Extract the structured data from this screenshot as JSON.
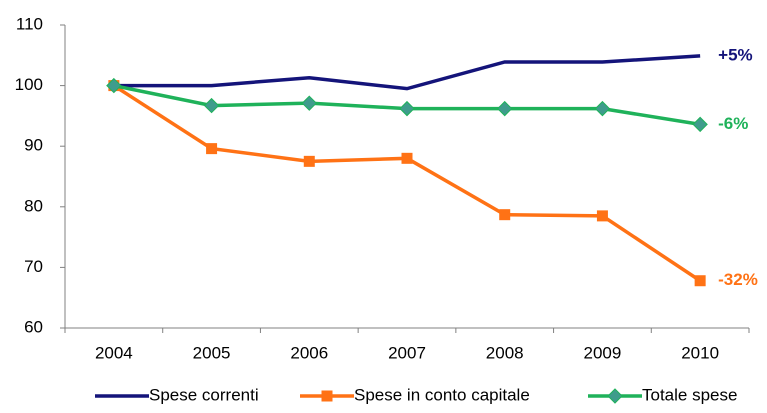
{
  "chart_data": {
    "type": "line",
    "categories": [
      "2004",
      "2005",
      "2006",
      "2007",
      "2008",
      "2009",
      "2010"
    ],
    "series": [
      {
        "name": "Spese correnti",
        "color": "#14147a",
        "marker": "none",
        "end_label": "+5%",
        "values": [
          100,
          100,
          101.3,
          99.5,
          103.9,
          103.9,
          104.9
        ]
      },
      {
        "name": "Spese in conto capitale",
        "color": "#ff7215",
        "marker": "square",
        "end_label": "-32%",
        "values": [
          100,
          89.6,
          87.5,
          88,
          78.7,
          78.5,
          67.8
        ]
      },
      {
        "name": "Totale spese",
        "color": "#1fb25a",
        "marker": "diamond",
        "end_label": "-6%",
        "values": [
          100,
          96.7,
          97.1,
          96.2,
          96.2,
          96.2,
          93.6
        ]
      }
    ],
    "ylim": [
      60,
      110
    ],
    "yticks": [
      60,
      70,
      80,
      90,
      100,
      110
    ],
    "grid": false,
    "legend": "bottom"
  }
}
